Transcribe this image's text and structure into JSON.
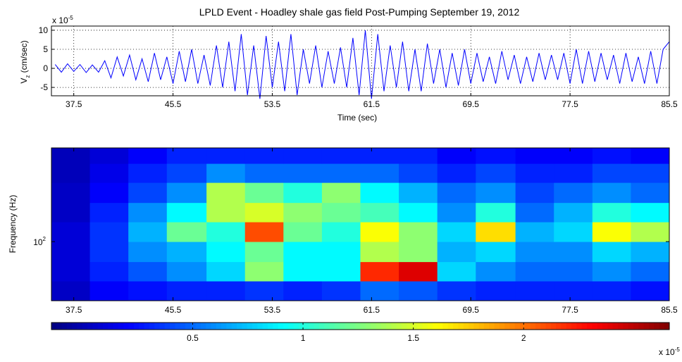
{
  "chart_data": [
    {
      "type": "line",
      "title": "LPLD Event - Hoadley shale gas field Post-Pumping September 19, 2012",
      "ylabel": [
        "V",
        "z",
        " (cm/sec)"
      ],
      "xlabel": "Time (sec)",
      "exponent_label": [
        "x 10",
        "-5"
      ],
      "color": "#0000ff",
      "grid": true,
      "xlim": [
        35.7,
        85.5
      ],
      "ylim": [
        -7.2,
        11.1
      ],
      "xticks": [
        37.5,
        45.5,
        53.5,
        61.5,
        69.5,
        77.5,
        85.5
      ],
      "yticks": [
        -5,
        0,
        5,
        10
      ],
      "x": [
        36,
        36.5,
        37,
        37.5,
        38,
        38.5,
        39,
        39.5,
        40,
        40.5,
        41,
        41.5,
        42,
        42.5,
        43,
        43.5,
        44,
        44.5,
        45,
        45.5,
        46,
        46.5,
        47,
        47.5,
        48,
        48.5,
        49,
        49.5,
        50,
        50.5,
        51,
        51.5,
        52,
        52.5,
        53,
        53.5,
        54,
        54.5,
        55,
        55.5,
        56,
        56.5,
        57,
        57.5,
        58,
        58.5,
        59,
        59.5,
        60,
        60.5,
        61,
        61.5,
        62,
        62.5,
        63,
        63.5,
        64,
        64.5,
        65,
        65.5,
        66,
        66.5,
        67,
        67.5,
        68,
        68.5,
        69,
        69.5,
        70,
        70.5,
        71,
        71.5,
        72,
        72.5,
        73,
        73.5,
        74,
        74.5,
        75,
        75.5,
        76,
        76.5,
        77,
        77.5,
        78,
        78.5,
        79,
        79.5,
        80,
        80.5,
        81,
        81.5,
        82,
        82.5,
        83,
        83.5,
        84,
        84.5,
        85,
        85.5
      ],
      "values": [
        1,
        -1,
        1.2,
        -0.8,
        1,
        -1.1,
        0.9,
        -1,
        2,
        -2.5,
        3,
        -2,
        3.5,
        -3,
        2.5,
        -3.5,
        4,
        -3,
        3,
        -4,
        4.5,
        -3.5,
        5,
        -4,
        3.5,
        -4.5,
        6,
        -5,
        7,
        -6,
        9,
        -7,
        6,
        -8,
        8.5,
        -5,
        7,
        -6,
        9,
        -7,
        5,
        -4,
        6,
        -5,
        4.5,
        -4,
        5.5,
        -5,
        8,
        -7,
        10,
        -8,
        9,
        -6,
        6,
        -5,
        7,
        -6,
        5,
        -6,
        6.5,
        -4,
        5,
        -5,
        4,
        -4.5,
        5,
        -4,
        4,
        -3.5,
        3,
        -4,
        4.5,
        -3,
        3.5,
        -4,
        3,
        -3.5,
        4,
        -3,
        3.5,
        -3,
        4,
        -4,
        5,
        -4,
        4.5,
        -3.5,
        4,
        -3,
        3.5,
        -4,
        4,
        -3.5,
        3,
        -4,
        4.5,
        -4,
        5,
        7
      ]
    },
    {
      "type": "heatmap",
      "ylabel": "Frequency (Hz)",
      "colormap": "jet",
      "log_y": true,
      "xlim": [
        35.7,
        85.5
      ],
      "ylim": [
        50,
        300
      ],
      "xticks": [
        37.5,
        45.5,
        53.5,
        61.5,
        69.5,
        77.5,
        85.5
      ],
      "yticks": [
        {
          "value": 100,
          "label": "10",
          "exponent": "2"
        }
      ],
      "xbins": [
        35.7,
        38.8,
        41.9,
        45.0,
        48.2,
        51.3,
        54.4,
        57.5,
        60.6,
        63.7,
        66.8,
        69.9,
        73.1,
        76.2,
        79.3,
        82.4,
        85.5
      ],
      "ybins": [
        50,
        63,
        79,
        100,
        126,
        158,
        200,
        250,
        300
      ],
      "values": [
        [
          0.05,
          0.2,
          0.25,
          0.3,
          0.3,
          0.35,
          0.3,
          0.35,
          0.5,
          0.45,
          0.35,
          0.3,
          0.3,
          0.3,
          0.3,
          0.25
        ],
        [
          0.1,
          0.3,
          0.45,
          0.6,
          0.8,
          1.3,
          0.9,
          0.9,
          2.2,
          2.4,
          0.8,
          0.6,
          0.5,
          0.5,
          0.6,
          0.5
        ],
        [
          0.1,
          0.35,
          0.6,
          0.7,
          0.9,
          1.2,
          0.9,
          0.9,
          1.4,
          1.3,
          0.7,
          0.8,
          0.6,
          0.6,
          0.8,
          0.7
        ],
        [
          0.1,
          0.35,
          0.7,
          1.2,
          1.0,
          2.1,
          1.2,
          1.0,
          1.6,
          1.3,
          0.8,
          1.7,
          0.7,
          0.8,
          1.6,
          1.4
        ],
        [
          0.05,
          0.3,
          0.6,
          0.9,
          1.4,
          1.5,
          1.3,
          1.2,
          1.1,
          0.9,
          0.6,
          1.0,
          0.5,
          0.7,
          1.0,
          0.9
        ],
        [
          0.05,
          0.2,
          0.4,
          0.6,
          1.4,
          1.2,
          1.0,
          1.3,
          0.9,
          0.7,
          0.5,
          0.6,
          0.4,
          0.5,
          0.6,
          0.5
        ],
        [
          0.02,
          0.15,
          0.3,
          0.4,
          0.6,
          0.5,
          0.5,
          0.5,
          0.5,
          0.4,
          0.3,
          0.4,
          0.3,
          0.3,
          0.4,
          0.4
        ],
        [
          0.02,
          0.1,
          0.2,
          0.3,
          0.3,
          0.3,
          0.3,
          0.3,
          0.3,
          0.3,
          0.2,
          0.25,
          0.2,
          0.2,
          0.25,
          0.2
        ]
      ],
      "clim": [
        -0.14,
        2.66
      ],
      "colorbar_ticks": [
        0.5,
        1,
        1.5,
        2
      ],
      "colorbar_exponent": [
        "x 10",
        "-5"
      ]
    }
  ]
}
